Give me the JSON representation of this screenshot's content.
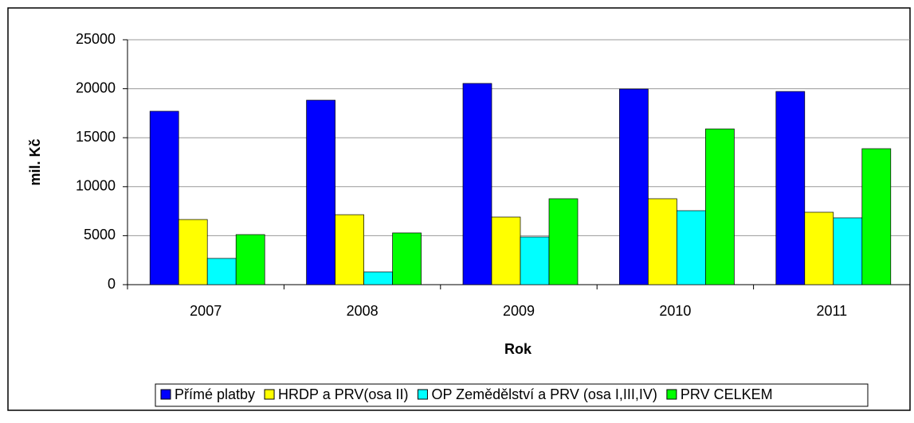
{
  "chart_data": {
    "type": "bar",
    "x_label": "Rok",
    "y_label": "mil. Kč",
    "categories": [
      "2007",
      "2008",
      "2009",
      "2010",
      "2011"
    ],
    "series": [
      {
        "name": "Přímé platby",
        "color": "#0000ff",
        "values": [
          17700,
          18830,
          20540,
          19970,
          19720
        ]
      },
      {
        "name": "HRDP a PRV(osa II)",
        "color": "#ffff00",
        "values": [
          6650,
          7140,
          6900,
          8770,
          7390
        ]
      },
      {
        "name": "OP Zemědělství a PRV (osa I,III,IV)",
        "color": "#00ffff",
        "values": [
          2680,
          1300,
          4870,
          7550,
          6820
        ]
      },
      {
        "name": "PRV CELKEM",
        "color": "#00ff00",
        "values": [
          5110,
          5280,
          8770,
          15900,
          13880
        ]
      }
    ],
    "ylim": [
      0,
      25000
    ],
    "yticks": [
      0,
      5000,
      10000,
      15000,
      20000,
      25000
    ],
    "grid": true,
    "legend": "bottom"
  }
}
